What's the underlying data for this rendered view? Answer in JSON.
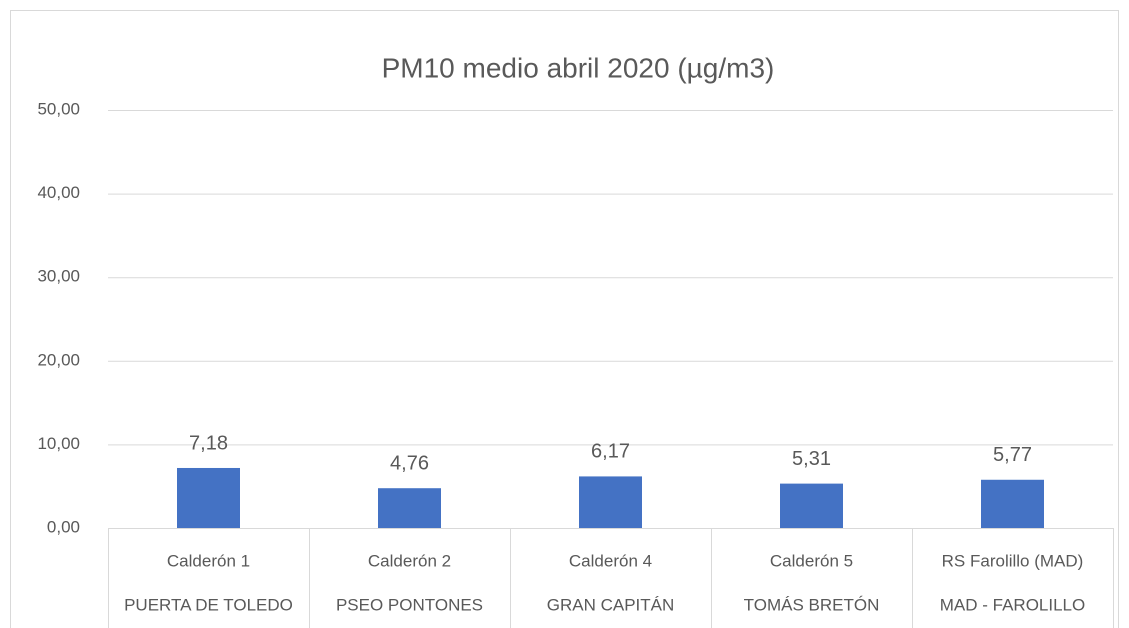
{
  "chart_data": {
    "type": "bar",
    "title": "PM10 medio abril 2020 (µg/m3)",
    "categories": [
      "Calderón 1",
      "Calderón 2",
      "Calderón 4",
      "Calderón 5",
      "RS Farolillo (MAD)"
    ],
    "subcategories": [
      "PUERTA DE TOLEDO",
      "PSEO PONTONES",
      "GRAN CAPITÁN",
      "TOMÁS BRETÓN",
      "MAD - FAROLILLO"
    ],
    "values": [
      7.18,
      4.76,
      6.17,
      5.31,
      5.77
    ],
    "value_labels": [
      "7,18",
      "4,76",
      "6,17",
      "5,31",
      "5,77"
    ],
    "color": "#4472c4",
    "ylim": [
      0,
      50
    ],
    "yticks": [
      {
        "value": 0,
        "label": "0,00"
      },
      {
        "value": 10,
        "label": "10,00"
      },
      {
        "value": 20,
        "label": "20,00"
      },
      {
        "value": 30,
        "label": "30,00"
      },
      {
        "value": 40,
        "label": "40,00"
      },
      {
        "value": 50,
        "label": "50,00"
      }
    ],
    "grid": true
  }
}
